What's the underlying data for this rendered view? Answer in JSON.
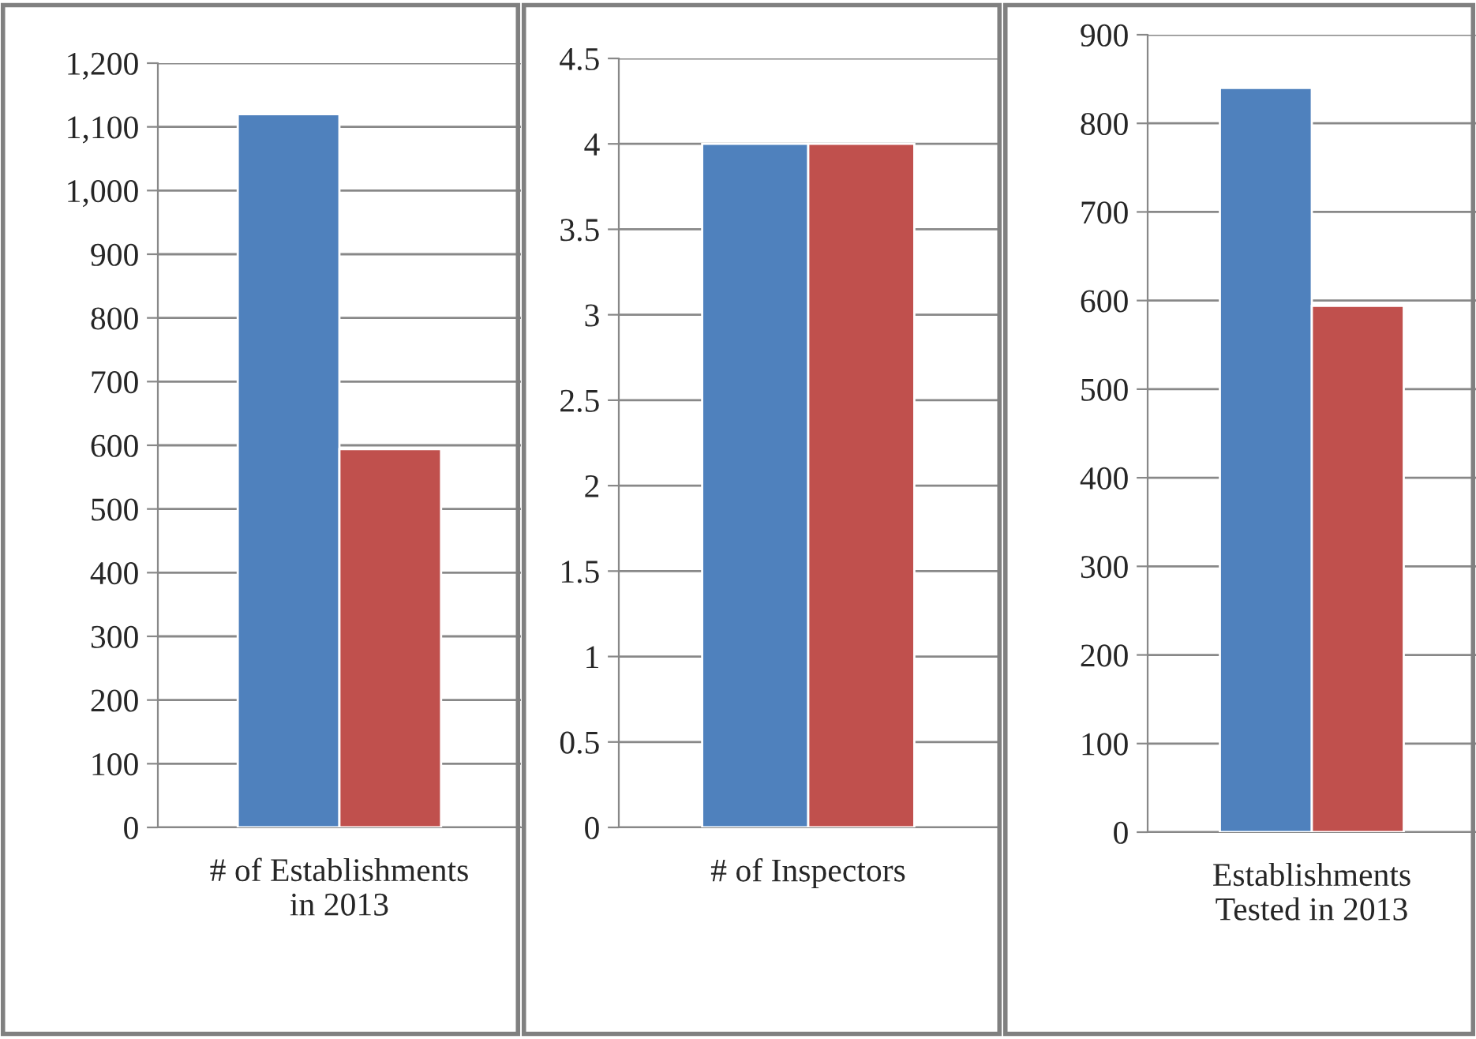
{
  "chart_data": [
    {
      "type": "bar",
      "categories": [
        "# of Establishments in 2013"
      ],
      "series": [
        {
          "color": "#4f81bd",
          "values": [
            1120
          ]
        },
        {
          "color": "#c0504d",
          "values": [
            594
          ]
        }
      ],
      "ylim": [
        0,
        1200
      ],
      "yticks": [
        0,
        100,
        200,
        300,
        400,
        500,
        600,
        700,
        800,
        900,
        {
          "value": 1000,
          "label": "1,000"
        },
        {
          "value": 1100,
          "label": "1,100"
        },
        {
          "value": 1200,
          "label": "1,200"
        }
      ],
      "grid": "y",
      "legend": false
    },
    {
      "type": "bar",
      "categories": [
        "# of Inspectors"
      ],
      "series": [
        {
          "color": "#4f81bd",
          "values": [
            4
          ]
        },
        {
          "color": "#c0504d",
          "values": [
            4
          ]
        }
      ],
      "ylim": [
        0,
        4.5
      ],
      "yticks": [
        0,
        0.5,
        1,
        1.5,
        2,
        2.5,
        3,
        3.5,
        4,
        4.5
      ],
      "grid": "y",
      "legend": false
    },
    {
      "type": "bar",
      "categories": [
        "Establishments Tested in 2013"
      ],
      "series": [
        {
          "color": "#4f81bd",
          "values": [
            840
          ]
        },
        {
          "color": "#c0504d",
          "values": [
            594
          ]
        }
      ],
      "ylim": [
        0,
        900
      ],
      "yticks": [
        0,
        100,
        200,
        300,
        400,
        500,
        600,
        700,
        800,
        900
      ],
      "grid": "y",
      "legend": false
    }
  ]
}
